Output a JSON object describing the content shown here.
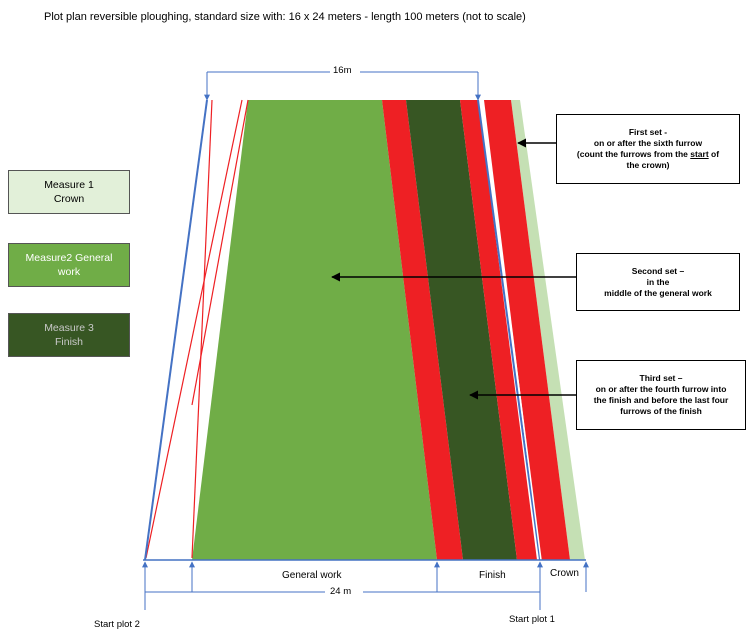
{
  "title": "Plot plan reversible ploughing, standard size with:  16 x 24 meters - length 100 meters (not to scale)",
  "legend": [
    {
      "line1": "Measure 1",
      "line2": "Crown",
      "color": "#E2F0D9",
      "text_color": "#000000"
    },
    {
      "line1": "Measure2 General",
      "line2": "work",
      "color": "#70AD47",
      "text_color": "#FFFFFF"
    },
    {
      "line1": "Measure 3",
      "line2": "Finish",
      "color": "#375623",
      "text_color": "#C9C9C9"
    }
  ],
  "callouts": {
    "first": {
      "title": "First set -",
      "l1": "on or after the sixth furrow",
      "l2a": "(count the furrows from the ",
      "l2u": "start",
      "l2b": " of",
      "l3": "the crown)"
    },
    "second": {
      "title": "Second set –",
      "l1": "in the",
      "l2": "middle of the general work"
    },
    "third": {
      "title": "Third set –",
      "l1": "on or after the fourth furrow into",
      "l2": "the finish and before the last four",
      "l3": "furrows of the finish"
    }
  },
  "labels": {
    "top_width": "16m",
    "bottom_width": "24 m",
    "general_work": "General work",
    "finish": "Finish",
    "crown": "Crown",
    "start_plot_1": "Start plot 1",
    "start_plot_2": "Start plot 2"
  },
  "colors": {
    "general": "#70AD47",
    "finish": "#375623",
    "crown": "#C5E0B4",
    "red": "#EE2024",
    "blue": "#4472C4"
  }
}
